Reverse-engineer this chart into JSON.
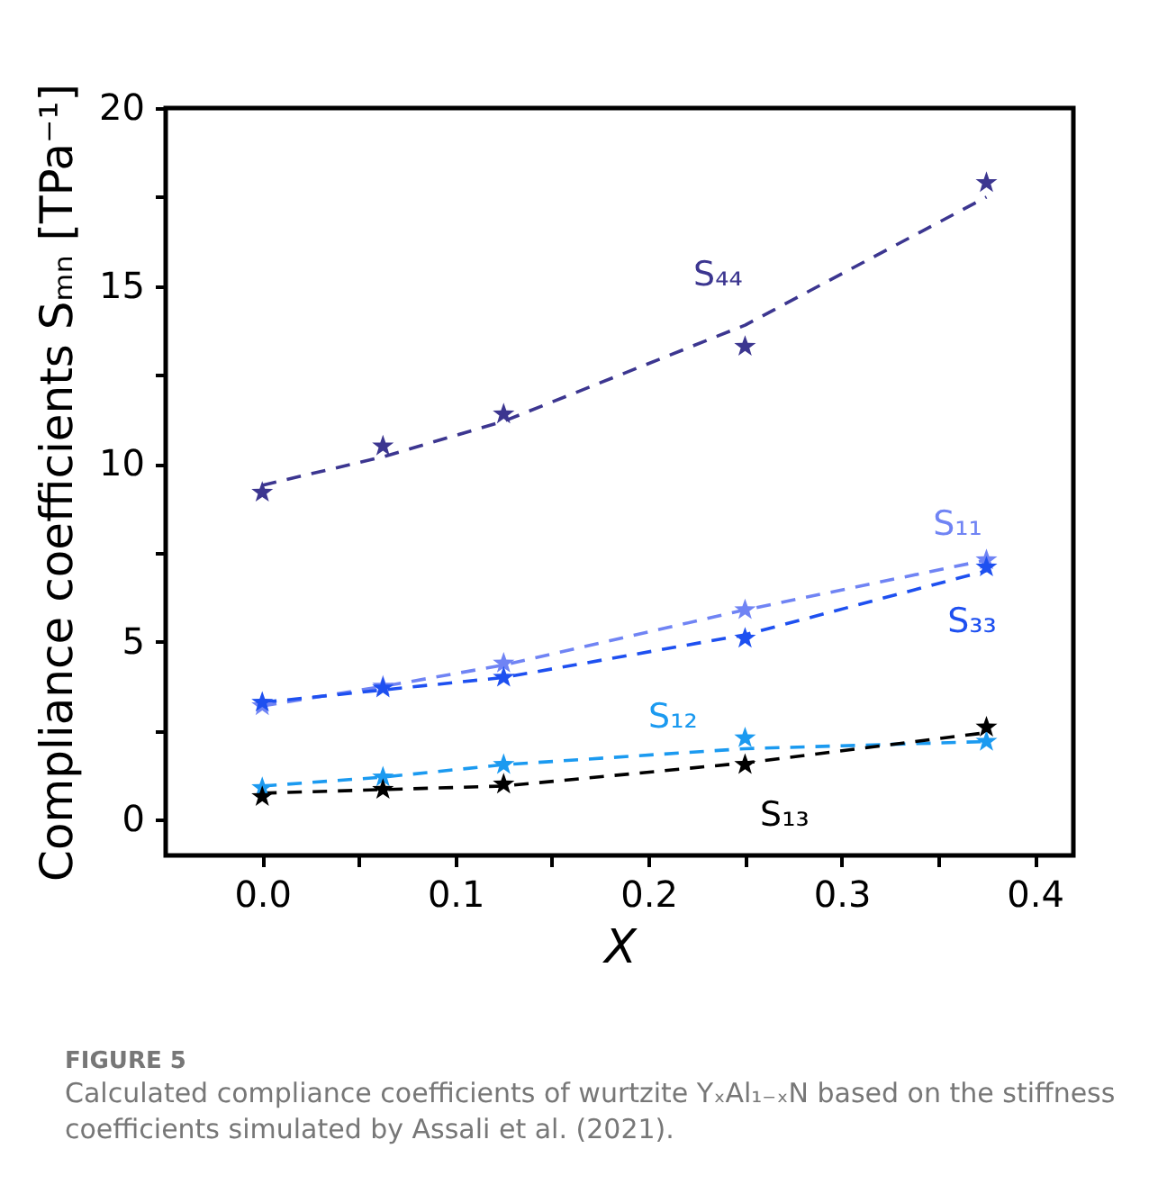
{
  "chart_data": {
    "type": "scatter",
    "xlabel": "X",
    "ylabel": "Compliance coefficients Sₘₙ [TPa⁻¹]",
    "x": [
      0,
      0.0625,
      0.125,
      0.25,
      0.375
    ],
    "xlim": [
      -0.05,
      0.42
    ],
    "xticks": [
      {
        "value": 0,
        "label": "0.0"
      },
      {
        "value": 0.05,
        "label": null
      },
      {
        "value": 0.1,
        "label": "0.1"
      },
      {
        "value": 0.15,
        "label": null
      },
      {
        "value": 0.2,
        "label": "0.2"
      },
      {
        "value": 0.25,
        "label": null
      },
      {
        "value": 0.3,
        "label": "0.3"
      },
      {
        "value": 0.35,
        "label": null
      },
      {
        "value": 0.4,
        "label": "0.4"
      }
    ],
    "ylim": [
      -1,
      20
    ],
    "yticks": [
      0,
      {
        "value": 2.5,
        "label": null
      },
      5,
      {
        "value": 7.5,
        "label": null
      },
      10,
      {
        "value": 12.5,
        "label": null
      },
      15,
      {
        "value": 17.5,
        "label": null
      },
      20
    ],
    "grid": false,
    "marker": "star",
    "series": [
      {
        "type": "line",
        "line_style": "dashed",
        "marker": "none",
        "color": "#3c3690",
        "values": [
          9.4,
          10.2,
          11.2,
          13.9,
          17.5
        ]
      },
      {
        "type": "line",
        "line_style": "dashed",
        "marker": "none",
        "color": "#7084f4",
        "values": [
          3.2,
          3.75,
          4.35,
          5.9,
          7.3
        ]
      },
      {
        "type": "line",
        "line_style": "dashed",
        "marker": "none",
        "color": "#1e50f0",
        "values": [
          3.3,
          3.65,
          4.0,
          5.2,
          7.0
        ]
      },
      {
        "type": "line",
        "line_style": "dashed",
        "marker": "none",
        "color": "#1b9af0",
        "values": [
          0.95,
          1.2,
          1.55,
          2.0,
          2.2
        ]
      },
      {
        "type": "line",
        "line_style": "dashed",
        "marker": "none",
        "color": "#000000",
        "values": [
          0.75,
          0.85,
          0.95,
          1.6,
          2.45
        ]
      },
      {
        "name": "S₄₄",
        "color": "#3c3690",
        "values": [
          9.2,
          10.5,
          11.4,
          13.3,
          17.9
        ]
      },
      {
        "name": "S₁₁",
        "color": "#7084f4",
        "values": [
          3.2,
          3.75,
          4.4,
          5.9,
          7.3
        ]
      },
      {
        "name": "S₃₃",
        "color": "#1e50f0",
        "values": [
          3.3,
          3.7,
          4.0,
          5.1,
          7.1
        ]
      },
      {
        "name": "S₁₂",
        "color": "#1b9af0",
        "values": [
          0.9,
          1.2,
          1.55,
          2.3,
          2.2
        ]
      },
      {
        "name": "S₁₃",
        "color": "#000000",
        "values": [
          0.65,
          0.85,
          1.0,
          1.55,
          2.6
        ]
      }
    ],
    "annotations": [
      "FIGURE 5",
      "Calculated compliance coefficients of wurtzite YₓAl₁₋ₓN based on the stiffness coefficients simulated by Assali et al. (2021)."
    ]
  }
}
